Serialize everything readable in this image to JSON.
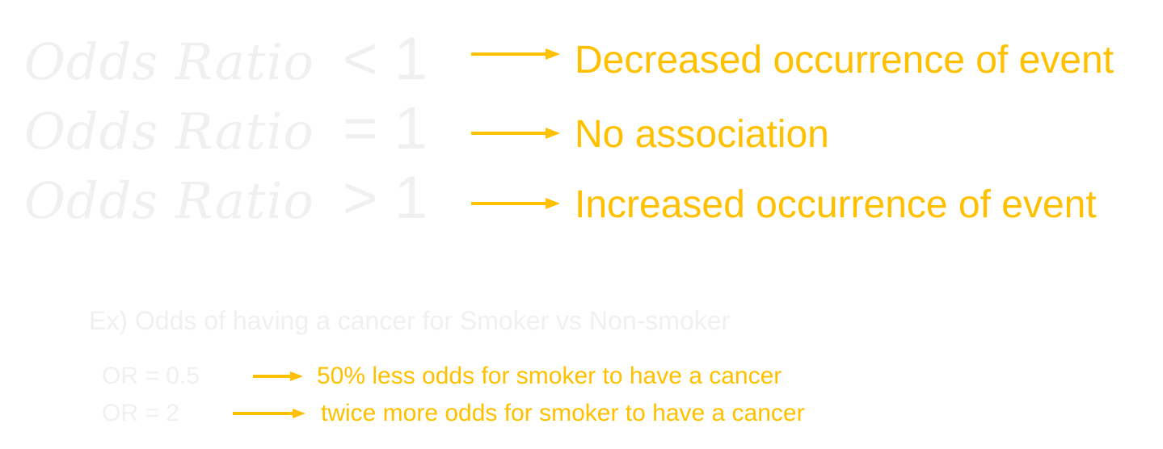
{
  "rules": [
    {
      "lhs": "Odds Ratio",
      "op": "< 1",
      "meaning": "Decreased occurrence of event"
    },
    {
      "lhs": "Odds Ratio",
      "op": "= 1",
      "meaning": "No association"
    },
    {
      "lhs": "Odds Ratio",
      "op": "> 1",
      "meaning": "Increased occurrence of event"
    }
  ],
  "example": {
    "title": "Ex) Odds of having a cancer for Smoker vs Non-smoker",
    "items": [
      {
        "label": "OR = 0.5",
        "meaning": "50% less odds for smoker to have a cancer"
      },
      {
        "label": "OR = 2",
        "meaning": "twice more odds for smoker to have a cancer"
      }
    ]
  },
  "colors": {
    "accent": "#ffc000",
    "faint_text": "#f0f0f0",
    "background": "#ffffff"
  }
}
